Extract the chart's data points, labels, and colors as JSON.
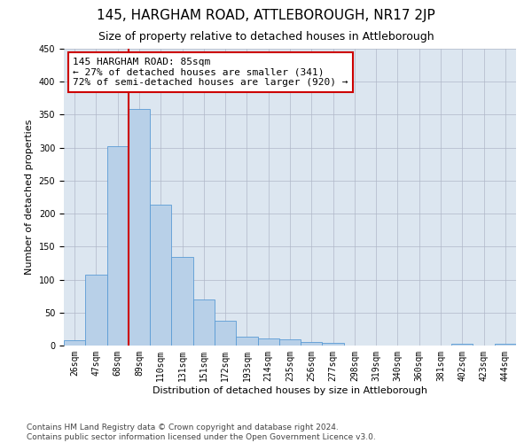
{
  "title": "145, HARGHAM ROAD, ATTLEBOROUGH, NR17 2JP",
  "subtitle": "Size of property relative to detached houses in Attleborough",
  "xlabel": "Distribution of detached houses by size in Attleborough",
  "ylabel": "Number of detached properties",
  "categories": [
    "26sqm",
    "47sqm",
    "68sqm",
    "89sqm",
    "110sqm",
    "131sqm",
    "151sqm",
    "172sqm",
    "193sqm",
    "214sqm",
    "235sqm",
    "256sqm",
    "277sqm",
    "298sqm",
    "319sqm",
    "340sqm",
    "360sqm",
    "381sqm",
    "402sqm",
    "423sqm",
    "444sqm"
  ],
  "values": [
    8,
    108,
    302,
    358,
    213,
    135,
    70,
    38,
    13,
    11,
    10,
    6,
    4,
    0,
    0,
    0,
    0,
    0,
    3,
    0,
    3
  ],
  "bar_color": "#b8d0e8",
  "bar_edge_color": "#5b9bd5",
  "subject_line_color": "#cc0000",
  "annotation_text": "145 HARGHAM ROAD: 85sqm\n← 27% of detached houses are smaller (341)\n72% of semi-detached houses are larger (920) →",
  "annotation_box_color": "#cc0000",
  "ylim": [
    0,
    450
  ],
  "yticks": [
    0,
    50,
    100,
    150,
    200,
    250,
    300,
    350,
    400,
    450
  ],
  "background_color": "#ffffff",
  "plot_bg_color": "#dce6f0",
  "grid_color": "#b0b8c8",
  "footer_line1": "Contains HM Land Registry data © Crown copyright and database right 2024.",
  "footer_line2": "Contains public sector information licensed under the Open Government Licence v3.0.",
  "title_fontsize": 11,
  "subtitle_fontsize": 9,
  "axis_label_fontsize": 8,
  "tick_fontsize": 7,
  "annotation_fontsize": 8,
  "footer_fontsize": 6.5
}
